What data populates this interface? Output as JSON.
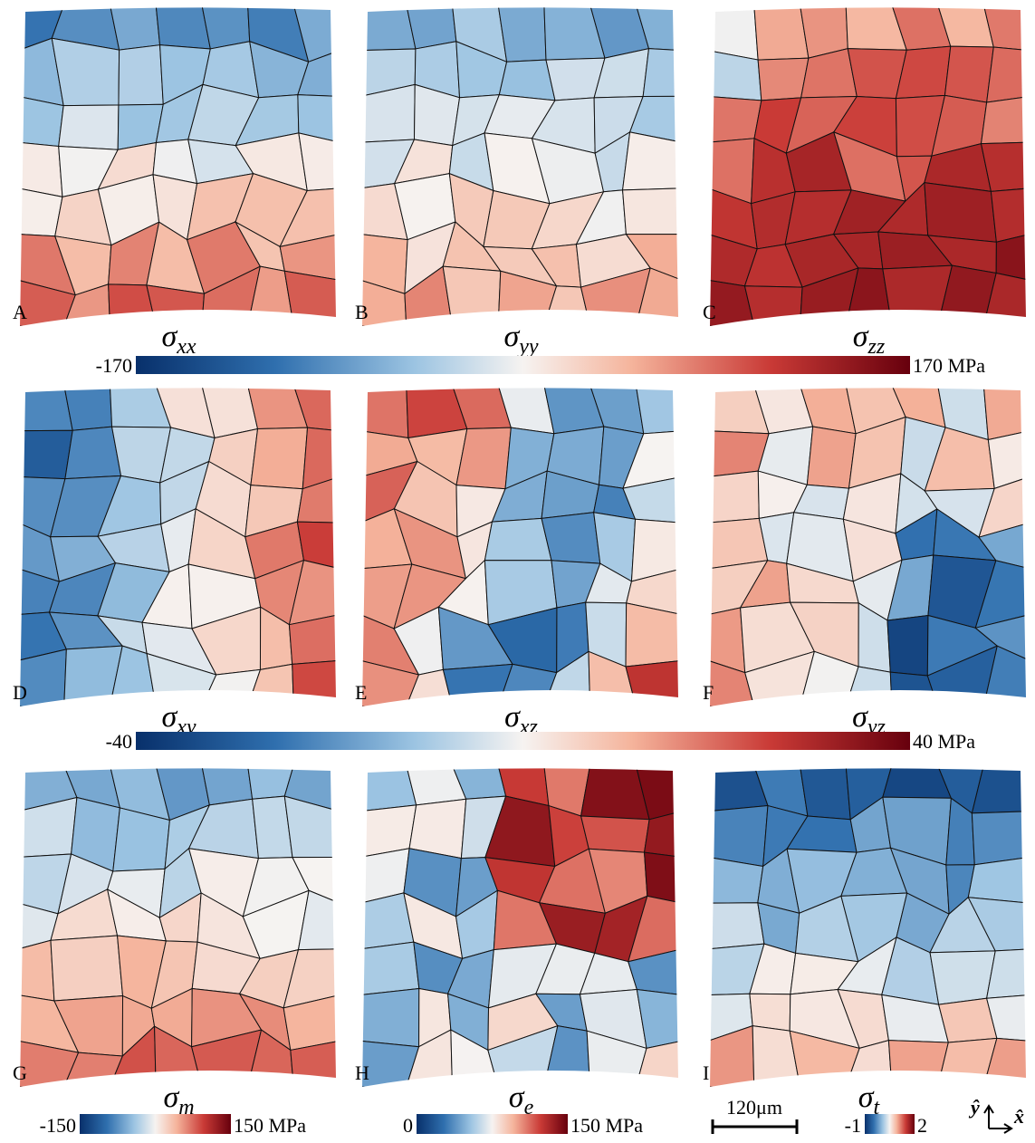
{
  "panels": [
    {
      "letter": "A",
      "symbol": "σ",
      "subscript": "xx"
    },
    {
      "letter": "B",
      "symbol": "σ",
      "subscript": "yy"
    },
    {
      "letter": "C",
      "symbol": "σ",
      "subscript": "zz"
    },
    {
      "letter": "D",
      "symbol": "σ",
      "subscript": "xy"
    },
    {
      "letter": "E",
      "symbol": "σ",
      "subscript": "xz"
    },
    {
      "letter": "F",
      "symbol": "σ",
      "subscript": "yz"
    },
    {
      "letter": "G",
      "symbol": "σ",
      "subscript": "m"
    },
    {
      "letter": "H",
      "symbol": "σ",
      "subscript": "e"
    },
    {
      "letter": "I",
      "symbol": "σ",
      "subscript": "t"
    }
  ],
  "colorbars": [
    {
      "min_label": "-170",
      "max_label": "170 MPa"
    },
    {
      "min_label": "-40",
      "max_label": "40 MPa"
    },
    {
      "min_label": "-150",
      "max_label": "150 MPa"
    },
    {
      "min_label": "0",
      "max_label": "150 MPa"
    },
    {
      "min_label": "-1",
      "max_label": "2"
    }
  ],
  "scale_bar": "120μm",
  "axes": {
    "y": "ŷ",
    "x": "x̂"
  }
}
